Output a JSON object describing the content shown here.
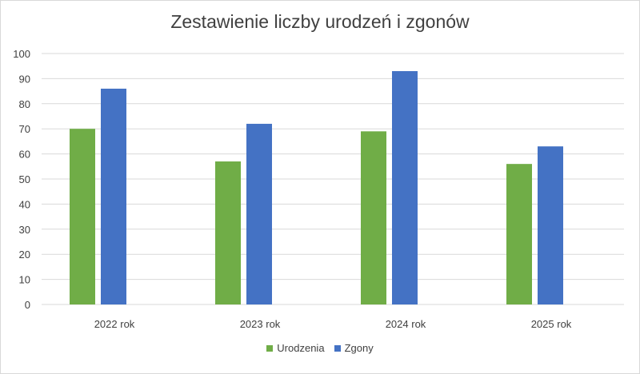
{
  "chart_data": {
    "type": "bar",
    "title": "Zestawienie liczby urodzeń i zgonów",
    "categories": [
      "2022 rok",
      "2023 rok",
      "2024 rok",
      "2025 rok"
    ],
    "series": [
      {
        "name": "Urodzenia",
        "values": [
          70,
          57,
          69,
          56
        ],
        "color": "#70ad47"
      },
      {
        "name": "Zgony",
        "values": [
          86,
          72,
          93,
          63
        ],
        "color": "#4472c4"
      }
    ],
    "ylim": [
      0,
      100
    ],
    "yticks": [
      "0",
      "10",
      "20",
      "30",
      "40",
      "50",
      "60",
      "70",
      "80",
      "90",
      "100"
    ],
    "grid": true,
    "legend_position": "bottom",
    "gridline_color": "#d9d9d9"
  }
}
